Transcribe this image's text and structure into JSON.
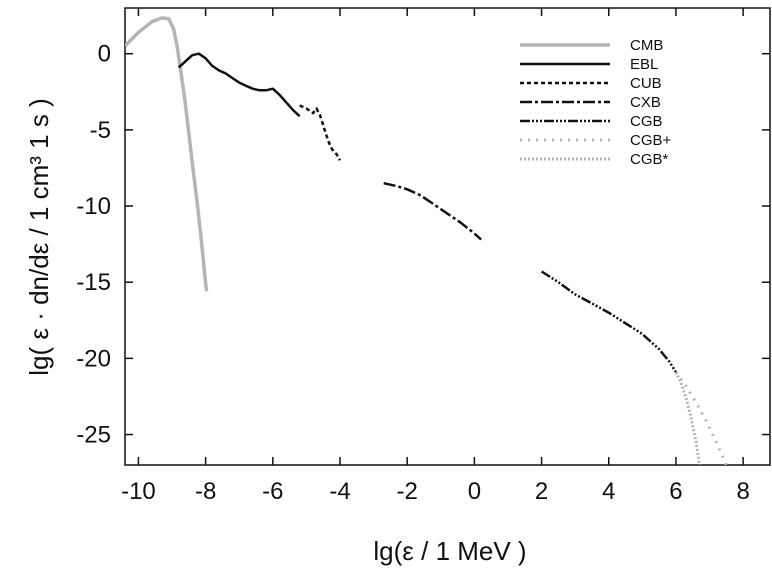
{
  "chart_data": {
    "type": "line",
    "xlabel": "lg(ε / 1 MeV )",
    "ylabel": "lg( ε · dn/dε / 1 cm³ 1 s )",
    "xlim": [
      -10.4,
      8.8
    ],
    "ylim": [
      -27,
      3
    ],
    "xticks": [
      -10,
      -8,
      -6,
      -4,
      -2,
      0,
      2,
      4,
      6,
      8
    ],
    "xtick_labels": [
      "-10",
      "-8",
      "-6",
      "-4",
      "-2",
      "0",
      "2",
      "4",
      "6",
      "8"
    ],
    "yticks": [
      0,
      -5,
      -10,
      -15,
      -20,
      -25
    ],
    "ytick_labels": [
      "0",
      "-5",
      "-10",
      "-15",
      "-20",
      "-25"
    ],
    "grid": false,
    "legend_position": "top-right",
    "series": [
      {
        "name": "CMB",
        "color": "#b5b5b5",
        "dash": "solid",
        "width": 3.5,
        "x": [
          -10.4,
          -10.0,
          -9.6,
          -9.3,
          -9.1,
          -8.95,
          -8.85,
          -8.75,
          -8.62,
          -8.5,
          -8.38,
          -8.25,
          -8.15,
          -8.07,
          -8.02,
          -7.97
        ],
        "y": [
          0.5,
          1.4,
          2.1,
          2.35,
          2.3,
          1.6,
          0.5,
          -1.0,
          -3.0,
          -5.2,
          -7.5,
          -9.8,
          -11.8,
          -13.5,
          -14.7,
          -15.6
        ]
      },
      {
        "name": "EBL",
        "color": "#111111",
        "dash": "solid",
        "width": 2.5,
        "x": [
          -8.8,
          -8.6,
          -8.4,
          -8.2,
          -8.0,
          -7.8,
          -7.6,
          -7.4,
          -7.2,
          -7.0,
          -6.8,
          -6.6,
          -6.4,
          -6.2,
          -6.0,
          -5.8,
          -5.6,
          -5.4,
          -5.2
        ],
        "y": [
          -0.9,
          -0.5,
          -0.1,
          0.0,
          -0.3,
          -0.8,
          -1.1,
          -1.3,
          -1.6,
          -1.9,
          -2.1,
          -2.3,
          -2.4,
          -2.4,
          -2.3,
          -2.7,
          -3.2,
          -3.7,
          -4.1
        ]
      },
      {
        "name": "CUB",
        "color": "#111111",
        "dash": "4,3",
        "width": 2.5,
        "x": [
          -5.2,
          -5.0,
          -4.8,
          -4.7,
          -4.6,
          -4.5,
          -4.4,
          -4.3,
          -4.2,
          -4.1,
          -4.0
        ],
        "y": [
          -3.4,
          -3.6,
          -3.9,
          -3.6,
          -4.0,
          -4.7,
          -5.4,
          -6.0,
          -6.4,
          -6.6,
          -7.0
        ]
      },
      {
        "name": "CXB",
        "color": "#111111",
        "dash": "12,3,3,3",
        "width": 2.5,
        "x": [
          -2.7,
          -2.3,
          -2.0,
          -1.6,
          -1.2,
          -0.8,
          -0.4,
          0.0,
          0.2
        ],
        "y": [
          -8.5,
          -8.7,
          -8.9,
          -9.3,
          -9.9,
          -10.5,
          -11.1,
          -11.8,
          -12.2
        ]
      },
      {
        "name": "CGB",
        "color": "#111111",
        "dash": "10,2,2,2,2,2,2,2",
        "width": 2.5,
        "x": [
          2.0,
          2.5,
          3.0,
          3.5,
          4.0,
          4.5,
          5.0,
          5.5,
          5.8,
          6.0
        ],
        "y": [
          -14.3,
          -15.0,
          -15.8,
          -16.4,
          -17.0,
          -17.7,
          -18.4,
          -19.4,
          -20.2,
          -20.9
        ]
      },
      {
        "name": "CGB+",
        "color": "#b5b5b5",
        "dash": "2,6",
        "width": 3,
        "x": [
          6.0,
          6.3,
          6.6,
          6.9,
          7.2,
          7.5
        ],
        "y": [
          -20.9,
          -21.8,
          -22.9,
          -24.1,
          -25.5,
          -27.0
        ]
      },
      {
        "name": "CGB*",
        "color": "#b5b5b5",
        "dash": "2,2",
        "width": 3,
        "x": [
          6.0,
          6.15,
          6.3,
          6.45,
          6.6,
          6.7
        ],
        "y": [
          -20.9,
          -21.6,
          -22.6,
          -23.9,
          -25.5,
          -27.0
        ]
      }
    ]
  }
}
